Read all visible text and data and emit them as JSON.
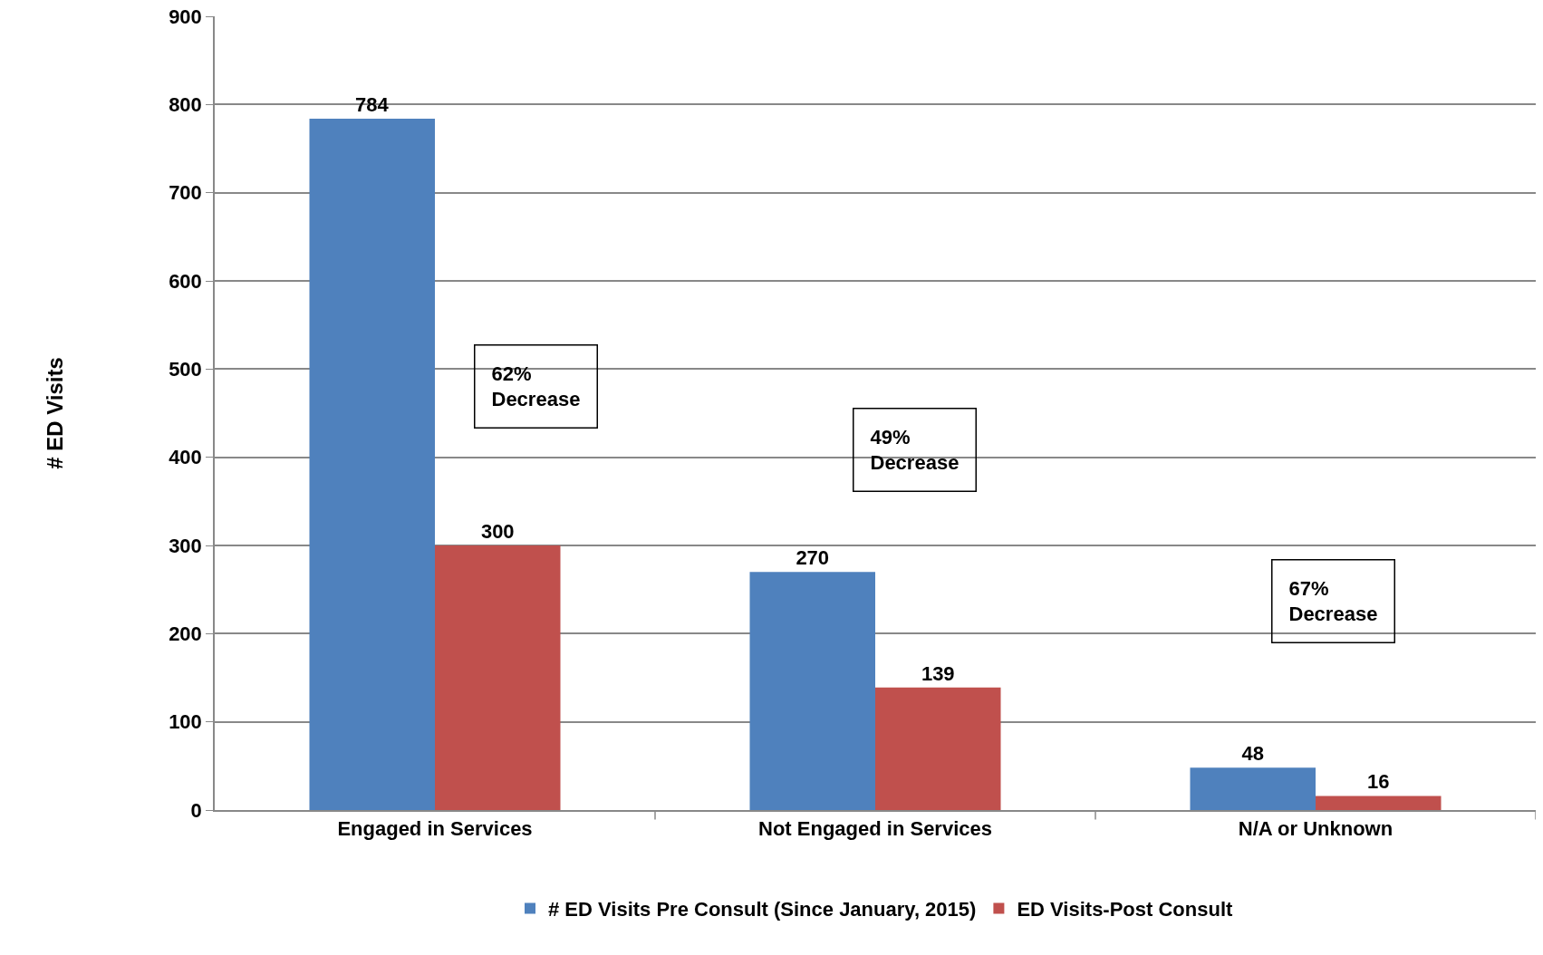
{
  "chart_data": {
    "type": "bar",
    "ylabel": "# ED Visits",
    "categories": [
      "Engaged in Services",
      "Not Engaged in Services",
      "N/A or Unknown"
    ],
    "series": [
      {
        "name": "# ED Visits Pre Consult (Since January, 2015)",
        "color": "#4f81bd",
        "values": [
          784,
          270,
          48
        ]
      },
      {
        "name": "ED Visits-Post Consult",
        "color": "#c0504d",
        "values": [
          300,
          139,
          16
        ]
      }
    ],
    "ylim": [
      0,
      900
    ],
    "yticks": [
      0,
      100,
      200,
      300,
      400,
      500,
      600,
      700,
      800,
      900
    ],
    "grid": "y",
    "legend": "bottom",
    "data_labels": true,
    "annotations": [
      "62%\nDecrease",
      "49%\nDecrease",
      "67%\nDecrease"
    ]
  }
}
